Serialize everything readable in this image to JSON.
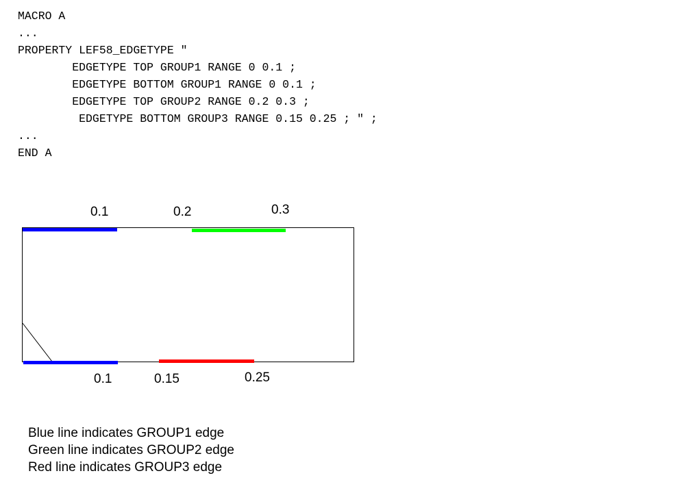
{
  "code_lines": [
    "MACRO A",
    "...",
    "PROPERTY LEF58_EDGETYPE \"",
    "        EDGETYPE TOP GROUP1 RANGE 0 0.1 ;",
    "        EDGETYPE BOTTOM GROUP1 RANGE 0 0.1 ;",
    "        EDGETYPE TOP GROUP2 RANGE 0.2 0.3 ;",
    "         EDGETYPE BOTTOM GROUP3 RANGE 0.15 0.25 ; \" ;",
    "...",
    "END A"
  ],
  "diagram": {
    "top_labels": [
      "0.1",
      "0.2",
      "0.3"
    ],
    "bottom_labels": [
      "0.1",
      "0.15",
      "0.25"
    ],
    "colors": {
      "group1": "#0000ff",
      "group2": "#00ff00",
      "group3": "#ff0000",
      "outline": "#000000"
    }
  },
  "legend": [
    "Blue line indicates GROUP1 edge",
    "Green line indicates GROUP2 edge",
    "Red line indicates GROUP3 edge"
  ]
}
